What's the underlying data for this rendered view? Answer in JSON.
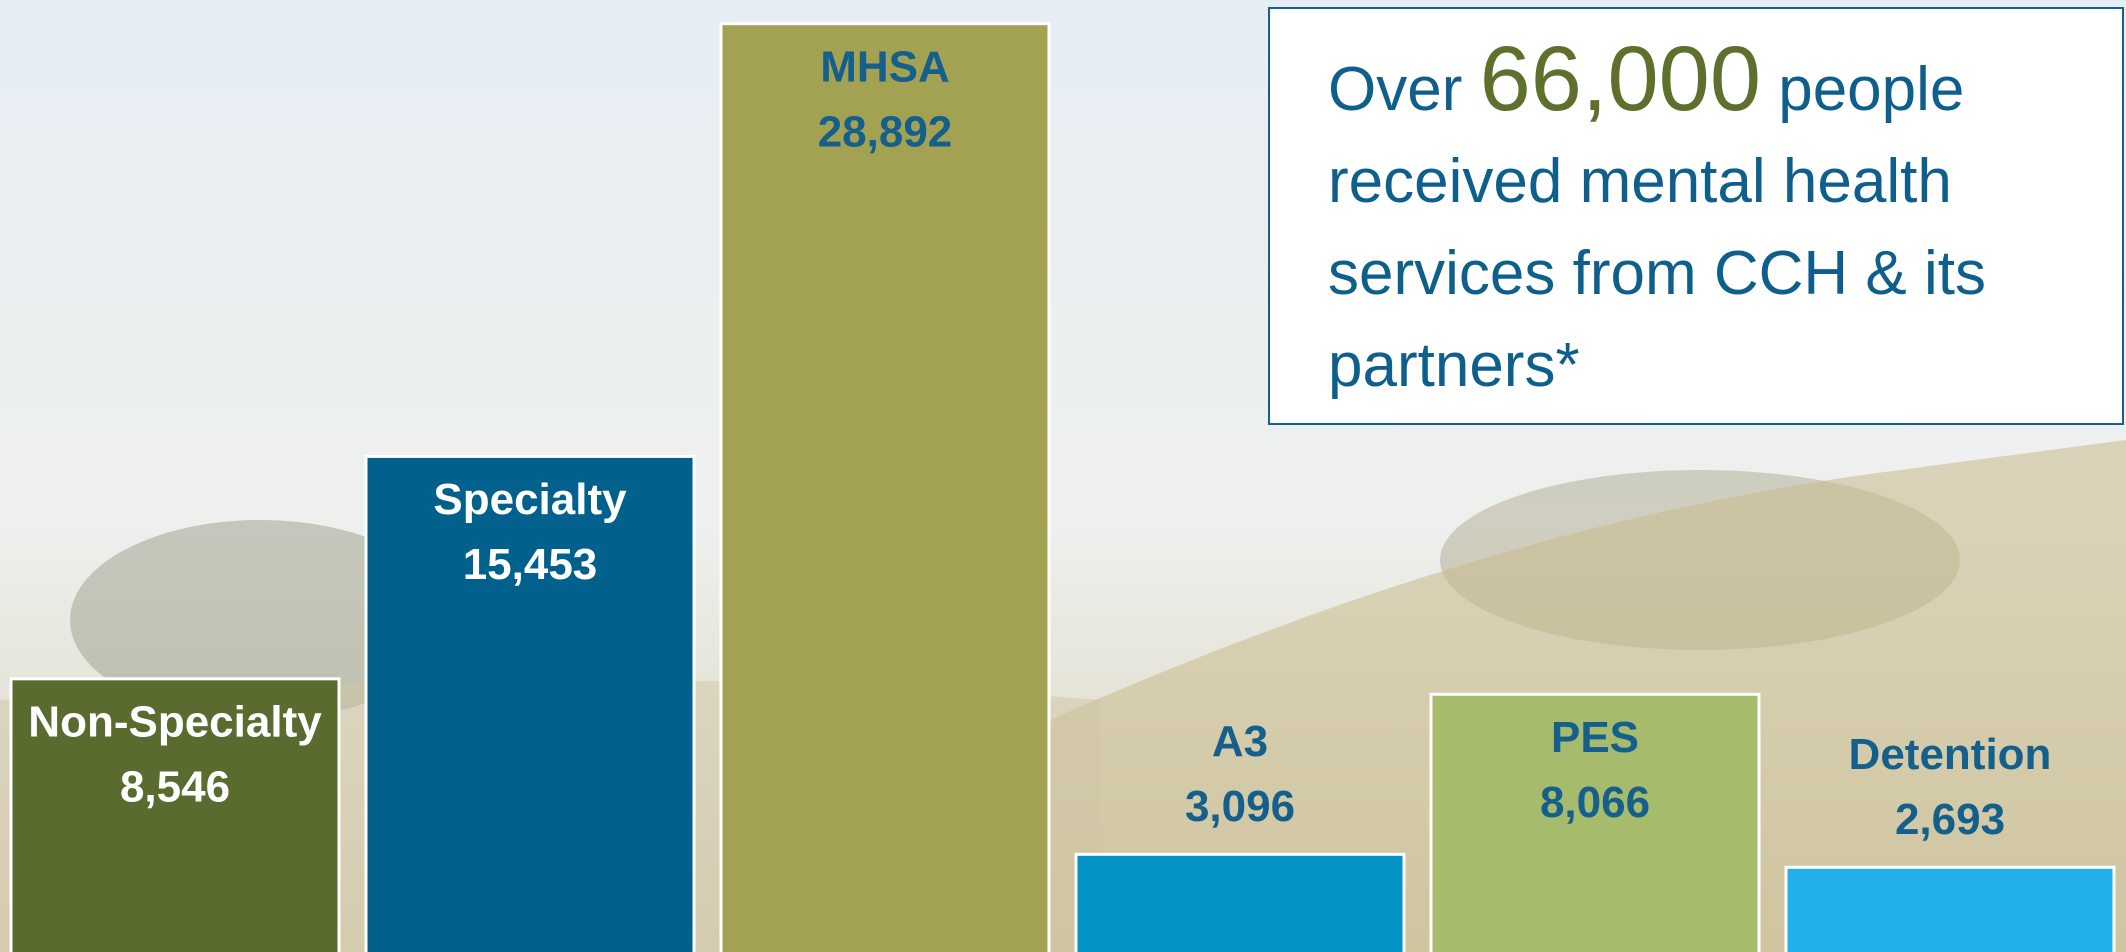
{
  "chart_data": {
    "type": "bar",
    "categories": [
      "Non-Specialty",
      "Specialty",
      "MHSA",
      "A3",
      "PES",
      "Detention"
    ],
    "values": [
      8546,
      15453,
      28892,
      3096,
      8066,
      2693
    ],
    "value_labels": [
      "8,546",
      "15,453",
      "28,892",
      "3,096",
      "8,066",
      "2,693"
    ],
    "colors": [
      "#5a6b2f",
      "#02608c",
      "#a3a152",
      "#0294c4",
      "#a6bb6b",
      "#22b0ec"
    ]
  },
  "annotation": {
    "prefix": "Over",
    "highlight": "66,000",
    "suffix": "people received mental health services from CCH & its partners*"
  }
}
